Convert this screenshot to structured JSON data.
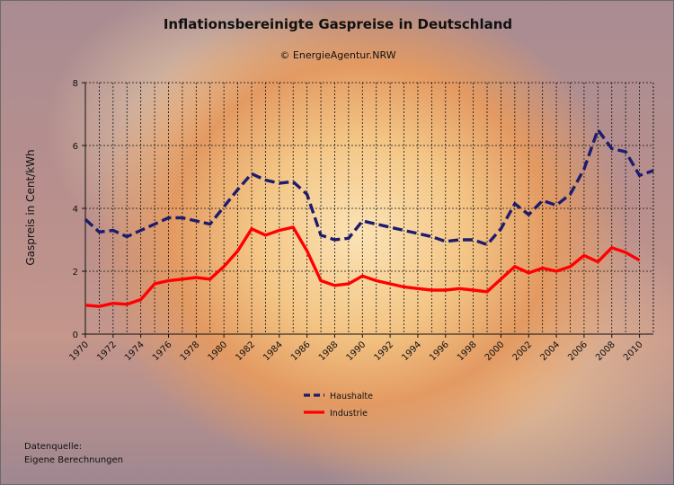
{
  "chart_data": {
    "type": "line",
    "title": "Inflationsbereinigte Gaspreise in Deutschland",
    "subtitle": "© EnergieAgentur.NRW",
    "ylabel": "Gaspreis in Cent/kWh",
    "xlabel": "",
    "ylim": [
      0,
      8
    ],
    "yticks": [
      0,
      2,
      4,
      6,
      8
    ],
    "xlim": [
      1970,
      2011
    ],
    "xticks": [
      1970,
      1972,
      1974,
      1976,
      1978,
      1980,
      1982,
      1984,
      1986,
      1988,
      1990,
      1992,
      1994,
      1996,
      1998,
      2000,
      2002,
      2004,
      2006,
      2008,
      2010
    ],
    "grid": true,
    "legend_position": "bottom-center",
    "x": [
      1970,
      1971,
      1972,
      1973,
      1974,
      1975,
      1976,
      1977,
      1978,
      1979,
      1980,
      1981,
      1982,
      1983,
      1984,
      1985,
      1986,
      1987,
      1988,
      1989,
      1990,
      1991,
      1992,
      1993,
      1994,
      1995,
      1996,
      1997,
      1998,
      1999,
      2000,
      2001,
      2002,
      2003,
      2004,
      2005,
      2006,
      2007,
      2008,
      2009,
      2010,
      2011
    ],
    "series": [
      {
        "name": "Haushalte",
        "color": "#1c1c6e",
        "style": "dashed",
        "values": [
          3.65,
          3.25,
          3.3,
          3.1,
          3.3,
          3.5,
          3.7,
          3.7,
          3.6,
          3.5,
          4.05,
          4.6,
          5.1,
          4.9,
          4.8,
          4.85,
          4.45,
          3.15,
          3.0,
          3.05,
          3.6,
          3.5,
          3.4,
          3.3,
          3.2,
          3.1,
          2.95,
          3.0,
          3.0,
          2.85,
          3.35,
          4.15,
          3.8,
          4.25,
          4.1,
          4.45,
          5.25,
          6.5,
          5.9,
          5.8,
          5.05,
          5.2
        ]
      },
      {
        "name": "Industrie",
        "color": "#ff0000",
        "style": "solid",
        "values": [
          0.92,
          0.88,
          0.98,
          0.95,
          1.1,
          1.6,
          1.7,
          1.75,
          1.8,
          1.75,
          2.15,
          2.65,
          3.35,
          3.15,
          3.3,
          3.4,
          2.65,
          1.7,
          1.55,
          1.6,
          1.85,
          1.7,
          1.6,
          1.5,
          1.45,
          1.4,
          1.4,
          1.45,
          1.4,
          1.35,
          1.75,
          2.15,
          1.95,
          2.1,
          2.0,
          2.15,
          2.5,
          2.3,
          2.75,
          2.6,
          2.35,
          null
        ]
      }
    ]
  },
  "source": {
    "line1": "Datenquelle:",
    "line2": "Eigene Berechnungen"
  }
}
